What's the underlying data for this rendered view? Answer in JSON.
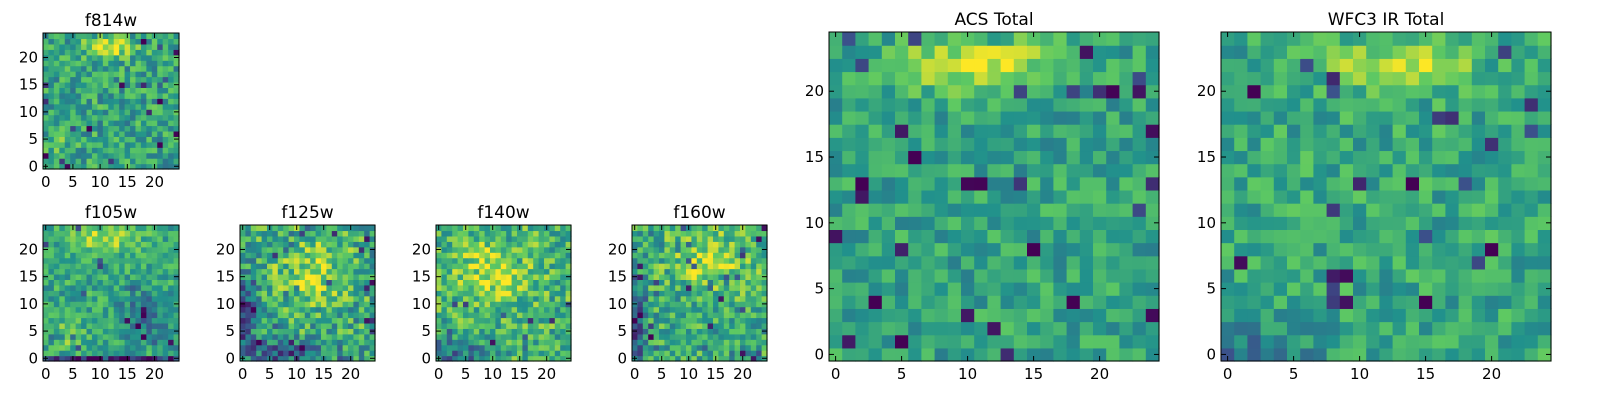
{
  "figure": {
    "colormap": "viridis",
    "colormap_stops": [
      "#440154",
      "#3b528b",
      "#21918c",
      "#5ec962",
      "#fde725"
    ],
    "frame_color": "#000000",
    "background": "#ffffff"
  },
  "chart_data": [
    {
      "type": "heatmap",
      "title": "f814w",
      "grid_size": [
        25,
        25
      ],
      "xlim": [
        -0.5,
        24.5
      ],
      "ylim": [
        -0.5,
        24.5
      ],
      "xticks": [
        0,
        5,
        10,
        15,
        20
      ],
      "yticks": [
        0,
        5,
        10,
        15,
        20
      ],
      "features": "noisy mid-level field with a bright band near rows 21-23, columns 9-14"
    },
    {
      "type": "heatmap",
      "title": "f105w",
      "grid_size": [
        25,
        25
      ],
      "xlim": [
        -0.5,
        24.5
      ],
      "ylim": [
        -0.5,
        24.5
      ],
      "xticks": [
        0,
        5,
        10,
        15,
        20
      ],
      "yticks": [
        0,
        5,
        10,
        15,
        20
      ],
      "features": "bright band near top center, bright blob near x 4-6 y 4-6, dark strip along bottom row"
    },
    {
      "type": "heatmap",
      "title": "f125w",
      "grid_size": [
        25,
        25
      ],
      "xlim": [
        -0.5,
        24.5
      ],
      "ylim": [
        -0.5,
        24.5
      ],
      "xticks": [
        0,
        5,
        10,
        15,
        20
      ],
      "yticks": [
        0,
        5,
        10,
        15,
        20
      ],
      "features": "patchy field, dark regions along left edge and bottom"
    },
    {
      "type": "heatmap",
      "title": "f140w",
      "grid_size": [
        25,
        25
      ],
      "xlim": [
        -0.5,
        24.5
      ],
      "ylim": [
        -0.5,
        24.5
      ],
      "xticks": [
        0,
        5,
        10,
        15,
        20
      ],
      "yticks": [
        0,
        5,
        10,
        15,
        20
      ],
      "features": "bright patchy field with darker cells near bottom left"
    },
    {
      "type": "heatmap",
      "title": "f160w",
      "grid_size": [
        25,
        25
      ],
      "xlim": [
        -0.5,
        24.5
      ],
      "ylim": [
        -0.5,
        24.5
      ],
      "xticks": [
        0,
        5,
        10,
        15,
        20
      ],
      "yticks": [
        0,
        5,
        10,
        15,
        20
      ],
      "features": "patchy field with dark left column and scattered dark cells"
    },
    {
      "type": "heatmap",
      "title": "ACS Total",
      "grid_size": [
        25,
        25
      ],
      "xlim": [
        -0.5,
        24.5
      ],
      "ylim": [
        -0.5,
        24.5
      ],
      "xticks": [
        0,
        5,
        10,
        15,
        20
      ],
      "yticks": [
        0,
        5,
        10,
        15,
        20
      ],
      "features": "bright band near rows 21-23, columns 5-15; scattered dark cells"
    },
    {
      "type": "heatmap",
      "title": "WFC3 IR Total",
      "grid_size": [
        25,
        25
      ],
      "xlim": [
        -0.5,
        24.5
      ],
      "ylim": [
        -0.5,
        24.5
      ],
      "xticks": [
        0,
        5,
        10,
        15,
        20
      ],
      "yticks": [
        0,
        5,
        10,
        15,
        20
      ],
      "features": "bright band near rows 21-23, columns 10-15; dark cells near bottom left"
    }
  ]
}
